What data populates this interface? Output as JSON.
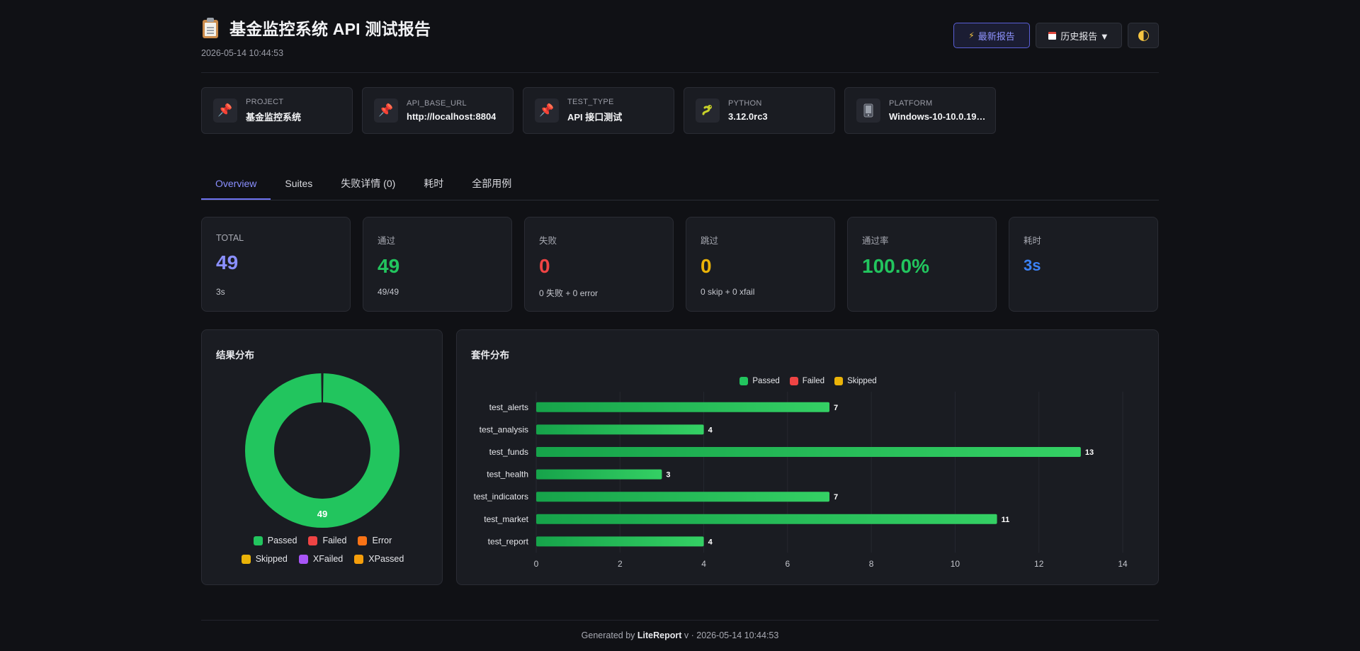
{
  "header": {
    "title_icon": "clipboard-icon",
    "title": "基金监控系统 API 测试报告",
    "timestamp": "2026-05-14 10:44:53",
    "buttons": {
      "latest": "最新报告",
      "history": "历史报告 ▼"
    }
  },
  "env": [
    {
      "icon": "pushpin-icon",
      "key": "PROJECT",
      "value": "基金监控系统"
    },
    {
      "icon": "pushpin-icon",
      "key": "API_BASE_URL",
      "value": "http://localhost:8804"
    },
    {
      "icon": "pushpin-icon",
      "key": "TEST_TYPE",
      "value": "API 接口测试"
    },
    {
      "icon": "python-icon",
      "key": "PYTHON",
      "value": "3.12.0rc3"
    },
    {
      "icon": "platform-icon",
      "key": "PLATFORM",
      "value": "Windows-10-10.0.19…"
    }
  ],
  "tabs": [
    {
      "label": "Overview",
      "active": true
    },
    {
      "label": "Suites",
      "active": false
    },
    {
      "label": "失败详情 (0)",
      "active": false
    },
    {
      "label": "耗时",
      "active": false
    },
    {
      "label": "全部用例",
      "active": false
    }
  ],
  "stats": [
    {
      "label": "TOTAL",
      "value": "49",
      "sub": "3s",
      "color": "#8a8fff"
    },
    {
      "label": "通过",
      "value": "49",
      "sub": "49/49",
      "color": "#22c55e"
    },
    {
      "label": "失败",
      "value": "0",
      "sub": "0 失败 + 0 error",
      "color": "#ef4444"
    },
    {
      "label": "跳过",
      "value": "0",
      "sub": "0 skip + 0 xfail",
      "color": "#eab308"
    },
    {
      "label": "通过率",
      "value": "100.0%",
      "sub": "",
      "color": "#22c55e"
    },
    {
      "label": "耗时",
      "value": "3s",
      "sub": "",
      "color": "#3b82f6"
    }
  ],
  "donut": {
    "title": "结果分布",
    "center_label": "49",
    "legend": [
      {
        "name": "Passed",
        "color": "#22c55e"
      },
      {
        "name": "Failed",
        "color": "#ef4444"
      },
      {
        "name": "Error",
        "color": "#f97316"
      },
      {
        "name": "Skipped",
        "color": "#eab308"
      },
      {
        "name": "XFailed",
        "color": "#a855f7"
      },
      {
        "name": "XPassed",
        "color": "#f59e0b"
      }
    ]
  },
  "bars": {
    "title": "套件分布",
    "legend": [
      {
        "name": "Passed",
        "color": "#22c55e"
      },
      {
        "name": "Failed",
        "color": "#ef4444"
      },
      {
        "name": "Skipped",
        "color": "#eab308"
      }
    ]
  },
  "chart_data": [
    {
      "type": "pie",
      "title": "结果分布",
      "labels": [
        "Passed",
        "Failed",
        "Error",
        "Skipped",
        "XFailed",
        "XPassed"
      ],
      "values": [
        49,
        0,
        0,
        0,
        0,
        0
      ],
      "colors": [
        "#22c55e",
        "#ef4444",
        "#f97316",
        "#eab308",
        "#a855f7",
        "#f59e0b"
      ],
      "legend": "bottom"
    },
    {
      "type": "bar",
      "title": "套件分布",
      "orientation": "horizontal",
      "categories": [
        "test_alerts",
        "test_analysis",
        "test_funds",
        "test_health",
        "test_indicators",
        "test_market",
        "test_report"
      ],
      "series": [
        {
          "name": "Passed",
          "values": [
            7,
            4,
            13,
            3,
            7,
            11,
            4
          ],
          "color": "#22c55e"
        },
        {
          "name": "Failed",
          "values": [
            0,
            0,
            0,
            0,
            0,
            0,
            0
          ],
          "color": "#ef4444"
        },
        {
          "name": "Skipped",
          "values": [
            0,
            0,
            0,
            0,
            0,
            0,
            0
          ],
          "color": "#eab308"
        }
      ],
      "xlim": [
        0,
        14
      ],
      "xticks": [
        0,
        2,
        4,
        6,
        8,
        10,
        12,
        14
      ],
      "grid": true,
      "legend": "top"
    }
  ],
  "footer": {
    "prefix": "Generated by",
    "brand": "LiteReport",
    "suffix": "v · 2026-05-14 10:44:53"
  }
}
